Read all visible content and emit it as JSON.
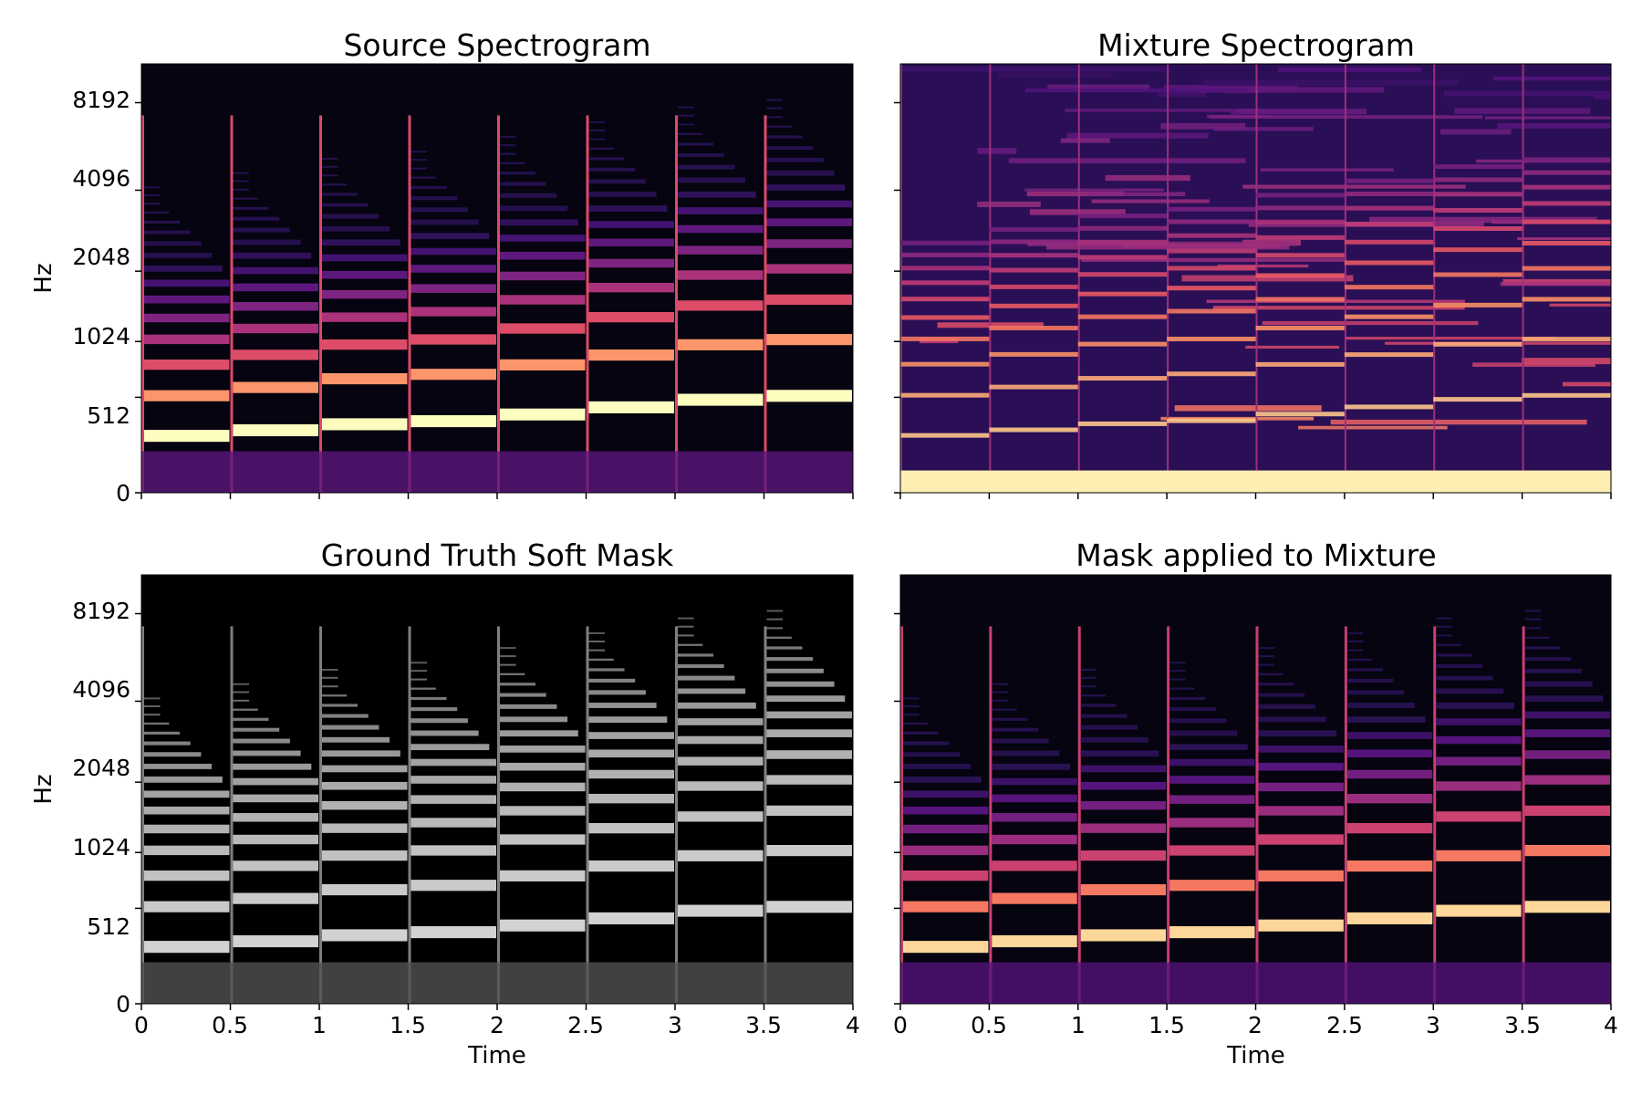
{
  "figure": {
    "panels": [
      {
        "title": "Source Spectrogram",
        "colormap": "magma"
      },
      {
        "title": "Mixture Spectrogram",
        "colormap": "magma"
      },
      {
        "title": "Ground Truth Soft Mask",
        "colormap": "gray"
      },
      {
        "title": "Mask applied to Mixture",
        "colormap": "magma"
      }
    ]
  },
  "chart_data": [
    {
      "type": "heatmap",
      "title": "Source Spectrogram",
      "xlabel": "",
      "ylabel": "Hz",
      "y_scale": "log2 (mel-like)",
      "xlim": [
        0,
        4
      ],
      "yticks": [
        0,
        512,
        1024,
        2048,
        4096,
        8192
      ],
      "x_tick_labels_visible": false,
      "colormap": "magma",
      "notes_onsets": [
        0,
        0.5,
        1,
        1.5,
        2,
        2.5,
        3,
        3.5
      ],
      "notes_fundamental_hz": [
        262,
        294,
        330,
        349,
        392,
        440,
        494,
        523
      ]
    },
    {
      "type": "heatmap",
      "title": "Mixture Spectrogram",
      "xlabel": "",
      "ylabel": "",
      "y_scale": "log2 (mel-like)",
      "xlim": [
        0,
        4
      ],
      "yticks": [
        0,
        512,
        1024,
        2048,
        4096,
        8192
      ],
      "x_tick_labels_visible": false,
      "y_tick_labels_visible": false,
      "colormap": "magma"
    },
    {
      "type": "heatmap",
      "title": "Ground Truth Soft Mask",
      "xlabel": "Time",
      "ylabel": "Hz",
      "y_scale": "log2 (mel-like)",
      "xlim": [
        0,
        4
      ],
      "xticks": [
        0,
        0.5,
        1,
        1.5,
        2,
        2.5,
        3,
        3.5,
        4
      ],
      "yticks": [
        0,
        512,
        1024,
        2048,
        4096,
        8192
      ],
      "colormap": "gray",
      "value_range": [
        0,
        1
      ]
    },
    {
      "type": "heatmap",
      "title": "Mask applied to Mixture",
      "xlabel": "Time",
      "ylabel": "",
      "y_scale": "log2 (mel-like)",
      "xlim": [
        0,
        4
      ],
      "xticks": [
        0,
        0.5,
        1,
        1.5,
        2,
        2.5,
        3,
        3.5,
        4
      ],
      "yticks": [
        0,
        512,
        1024,
        2048,
        4096,
        8192
      ],
      "y_tick_labels_visible": false,
      "colormap": "magma"
    }
  ],
  "axis_text": {
    "y_tick_labels": [
      "0",
      "512",
      "1024",
      "2048",
      "4096",
      "8192"
    ],
    "x_tick_labels": [
      "0",
      "0.5",
      "1",
      "1.5",
      "2",
      "2.5",
      "3",
      "3.5",
      "4"
    ],
    "ylabel": "Hz",
    "xlabel": "Time"
  }
}
